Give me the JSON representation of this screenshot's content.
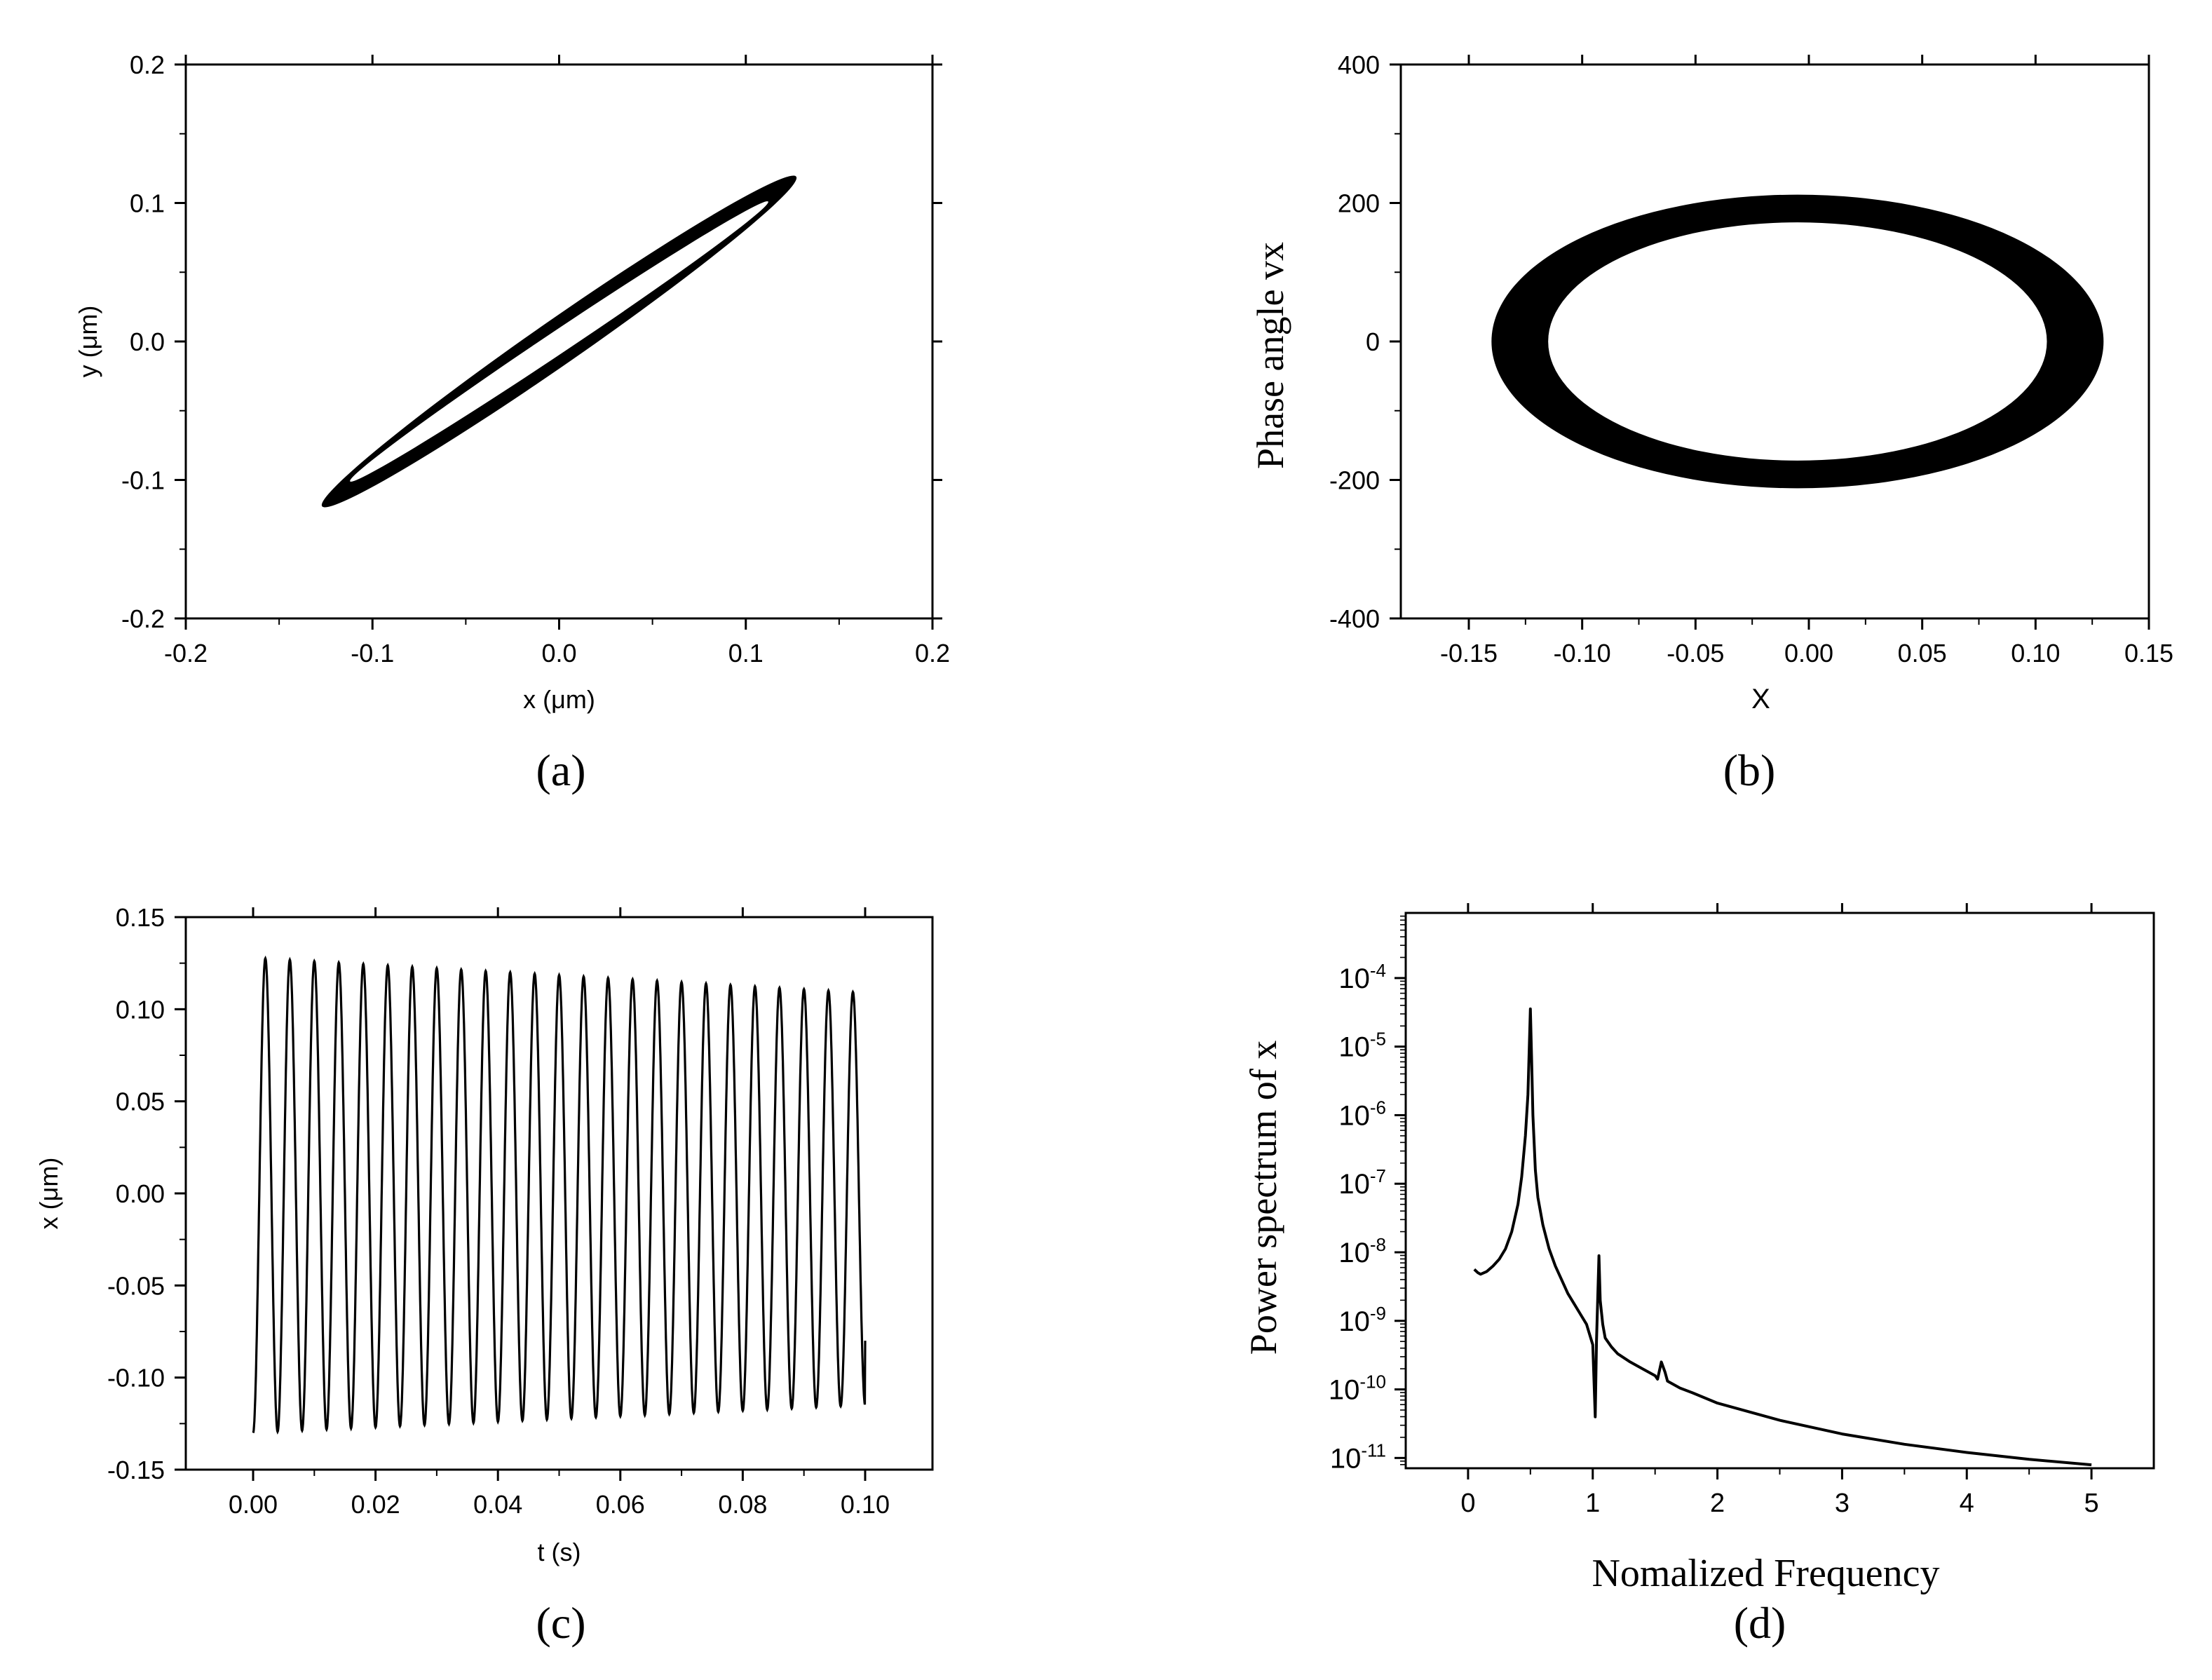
{
  "chart_data": [
    {
      "id": "a",
      "type": "line",
      "panel_label": "(a)",
      "title": "",
      "xlabel": "x (μm)",
      "ylabel": "y (μm)",
      "xlim": [
        -0.2,
        0.2
      ],
      "ylim": [
        -0.2,
        0.2
      ],
      "xticks": [
        -0.2,
        -0.1,
        0.0,
        0.1,
        0.2
      ],
      "xtick_labels": [
        "-0.2",
        "-0.1",
        "0.0",
        "0.1",
        "0.2"
      ],
      "yticks": [
        -0.2,
        -0.1,
        0.0,
        0.1,
        0.2
      ],
      "ytick_labels": [
        "-0.2",
        "-0.1",
        "0.0",
        "0.1",
        "0.2"
      ],
      "grid": false,
      "legend": "none",
      "series": [
        {
          "name": "orbit",
          "shape": "tilted-ellipse",
          "outer_tip": [
            0.127,
            0.119
          ],
          "inner_tip": [
            0.112,
            0.101
          ],
          "outer_half_width": 0.012,
          "inner_half_width": 0.006
        }
      ]
    },
    {
      "id": "b",
      "type": "line",
      "panel_label": "(b)",
      "title": "",
      "xlabel": "X",
      "ylabel": "Phase angle vx",
      "xlim": [
        -0.18,
        0.15
      ],
      "ylim": [
        -400,
        400
      ],
      "xticks": [
        -0.15,
        -0.1,
        -0.05,
        0.0,
        0.05,
        0.1,
        0.15
      ],
      "xtick_labels": [
        "-0.15",
        "-0.10",
        "-0.05",
        "0.00",
        "0.05",
        "0.10",
        "0.15"
      ],
      "yticks": [
        -400,
        -200,
        0,
        200,
        400
      ],
      "ytick_labels": [
        "-400",
        "-200",
        "0",
        "200",
        "400"
      ],
      "grid": false,
      "legend": "none",
      "series": [
        {
          "name": "phase portrait",
          "shape": "ring",
          "center": [
            -0.005,
            0
          ],
          "outer_radii": [
            0.135,
            212
          ],
          "inner_radii": [
            0.11,
            172
          ]
        }
      ]
    },
    {
      "id": "c",
      "type": "line",
      "panel_label": "(c)",
      "title": "",
      "xlabel": "t (s)",
      "ylabel": "x (μm)",
      "xlim": [
        -0.011,
        0.111
      ],
      "ylim": [
        -0.15,
        0.15
      ],
      "xticks": [
        0.0,
        0.02,
        0.04,
        0.06,
        0.08,
        0.1
      ],
      "xtick_labels": [
        "0.00",
        "0.02",
        "0.04",
        "0.06",
        "0.08",
        "0.10"
      ],
      "yticks": [
        -0.15,
        -0.1,
        -0.05,
        0.0,
        0.05,
        0.1,
        0.15
      ],
      "ytick_labels": [
        "-0.15",
        "-0.10",
        "-0.05",
        "0.00",
        "0.05",
        "0.10",
        "0.15"
      ],
      "grid": false,
      "legend": "none",
      "series": [
        {
          "name": "x(t)",
          "t_start": 0.0,
          "t_end": 0.1,
          "period": 0.004,
          "peak_start": 0.128,
          "peak_end": 0.109,
          "trough_start": -0.13,
          "trough_end": -0.115,
          "last_value": -0.08
        }
      ]
    },
    {
      "id": "d",
      "type": "line",
      "panel_label": "(d)",
      "title": "",
      "xlabel": "Nomalized Frequency",
      "ylabel": "Power spectrum of x",
      "xlim": [
        -0.5,
        5.5
      ],
      "ylim_log10": [
        -11.15,
        -3.05
      ],
      "yscale": "log",
      "xticks": [
        0,
        1,
        2,
        3,
        4,
        5
      ],
      "xtick_labels": [
        "0",
        "1",
        "2",
        "3",
        "4",
        "5"
      ],
      "yticks_log10": [
        -11,
        -10,
        -9,
        -8,
        -7,
        -6,
        -5,
        -4
      ],
      "ytick_mantissa": "10",
      "ytick_exponents": [
        "-11",
        "-10",
        "-9",
        "-8",
        "-7",
        "-6",
        "-5",
        "-4"
      ],
      "grid": false,
      "legend": "none",
      "series": [
        {
          "name": "spectrum",
          "x": [
            0.05,
            0.08,
            0.1,
            0.15,
            0.2,
            0.25,
            0.3,
            0.35,
            0.4,
            0.43,
            0.46,
            0.48,
            0.5,
            0.51,
            0.52,
            0.54,
            0.56,
            0.6,
            0.65,
            0.7,
            0.75,
            0.8,
            0.85,
            0.9,
            0.95,
            1.0,
            1.02,
            1.03,
            1.05,
            1.06,
            1.08,
            1.1,
            1.15,
            1.2,
            1.3,
            1.4,
            1.5,
            1.52,
            1.55,
            1.58,
            1.6,
            1.7,
            1.8,
            2.0,
            2.5,
            3.0,
            3.5,
            4.0,
            4.5,
            5.0
          ],
          "log10_y": [
            -8.25,
            -8.3,
            -8.32,
            -8.28,
            -8.2,
            -8.1,
            -7.95,
            -7.7,
            -7.3,
            -6.9,
            -6.3,
            -5.7,
            -4.45,
            -5.2,
            -6.0,
            -6.8,
            -7.2,
            -7.6,
            -7.95,
            -8.2,
            -8.4,
            -8.6,
            -8.75,
            -8.9,
            -9.05,
            -9.35,
            -10.4,
            -9.3,
            -8.05,
            -8.7,
            -9.05,
            -9.25,
            -9.38,
            -9.48,
            -9.6,
            -9.7,
            -9.8,
            -9.85,
            -9.6,
            -9.75,
            -9.88,
            -9.98,
            -10.05,
            -10.2,
            -10.45,
            -10.65,
            -10.8,
            -10.92,
            -11.02,
            -11.1
          ]
        }
      ]
    }
  ]
}
